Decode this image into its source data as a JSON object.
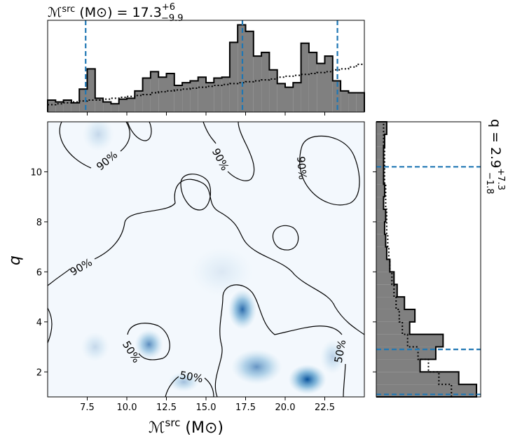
{
  "chart_data": {
    "type": "corner",
    "title": {
      "symbol": "ℳ",
      "sup": "src",
      "unit": " (M⊙) = ",
      "median": "17.3",
      "plus": "+6",
      "minus": "−9.9"
    },
    "x_label": {
      "symbol": "ℳ",
      "sup": "src",
      "unit": " (M⊙)"
    },
    "y_label": "q",
    "side_title": {
      "text": "q = 2.9",
      "plus": "+7.3",
      "minus": "−1.8"
    },
    "xlim": [
      5.0,
      25.0
    ],
    "ylim": [
      1.0,
      12.0
    ],
    "xticks": [
      7.5,
      {
        "value": 10,
        "label": "10.0"
      },
      12.5,
      {
        "value": 15,
        "label": "15.0"
      },
      17.5,
      {
        "value": 20,
        "label": "20.0"
      },
      22.5
    ],
    "yticks": [
      2,
      4,
      6,
      8,
      10
    ],
    "x_quantiles": [
      7.4,
      17.3,
      23.3
    ],
    "y_quantiles": [
      1.1,
      2.9,
      10.2
    ],
    "hist_lim": [
      0,
      100
    ],
    "x_hist": {
      "bins": [
        5.0,
        5.5,
        6.0,
        6.5,
        7.0,
        7.5,
        8.0,
        8.5,
        9.0,
        9.5,
        10.0,
        10.5,
        11.0,
        11.5,
        12.0,
        12.5,
        13.0,
        13.5,
        14.0,
        14.5,
        15.0,
        15.5,
        16.0,
        16.5,
        17.0,
        17.5,
        18.0,
        18.5,
        19.0,
        19.5,
        20.0,
        20.5,
        21.0,
        21.5,
        22.0,
        22.5,
        23.0,
        23.5,
        24.0,
        24.5,
        25.0
      ],
      "counts": [
        13,
        11,
        13,
        10,
        25,
        47,
        15,
        11,
        9,
        14,
        15,
        23,
        37,
        44,
        38,
        42,
        29,
        32,
        34,
        38,
        32,
        37,
        38,
        76,
        95,
        88,
        61,
        65,
        46,
        31,
        27,
        32,
        75,
        65,
        53,
        61,
        34,
        23,
        21,
        21
      ],
      "prior_counts": [
        8,
        9,
        10,
        11,
        12,
        13,
        13,
        14,
        15,
        16,
        17,
        18,
        19,
        21,
        22,
        23,
        24,
        25,
        26,
        27,
        28,
        29,
        30,
        31,
        32,
        33,
        34,
        35,
        36,
        38,
        39,
        40,
        41,
        42,
        43,
        44,
        46,
        47,
        49,
        52
      ]
    },
    "y_hist": {
      "bins": [
        1.0,
        1.5,
        2.0,
        2.5,
        3.0,
        3.5,
        4.0,
        4.5,
        5.0,
        5.5,
        6.0,
        6.5,
        7.0,
        7.5,
        8.0,
        8.5,
        9.0,
        9.5,
        10.0,
        10.5,
        11.0,
        11.5,
        12.0
      ],
      "counts": [
        96,
        79,
        42,
        57,
        64,
        32,
        37,
        27,
        20,
        17,
        13,
        10,
        9,
        8,
        9,
        7,
        8,
        7,
        7,
        7,
        8,
        10
      ],
      "prior_counts": [
        72,
        60,
        50,
        40,
        30,
        25,
        22,
        19,
        17,
        15,
        13,
        12,
        11,
        10,
        10,
        9,
        9,
        8,
        8,
        8,
        7,
        7
      ]
    },
    "density_peaks": [
      {
        "x": 21.4,
        "y": 1.7,
        "sx": 1.2,
        "sy": 0.6,
        "w": 1.0
      },
      {
        "x": 17.3,
        "y": 4.5,
        "sx": 0.9,
        "sy": 0.8,
        "w": 0.85
      },
      {
        "x": 18.2,
        "y": 2.2,
        "sx": 1.6,
        "sy": 0.7,
        "w": 0.6
      },
      {
        "x": 11.4,
        "y": 3.1,
        "sx": 0.9,
        "sy": 0.6,
        "w": 0.65
      },
      {
        "x": 13.6,
        "y": 1.6,
        "sx": 1.0,
        "sy": 0.4,
        "w": 0.35
      },
      {
        "x": 8.0,
        "y": 3.0,
        "sx": 0.9,
        "sy": 0.6,
        "w": 0.2
      },
      {
        "x": 8.2,
        "y": 11.5,
        "sx": 1.0,
        "sy": 0.7,
        "w": 0.2
      },
      {
        "x": 23.0,
        "y": 2.6,
        "sx": 0.8,
        "sy": 0.7,
        "w": 0.25
      },
      {
        "x": 16.0,
        "y": 6.0,
        "sx": 2.0,
        "sy": 1.0,
        "w": 0.1
      }
    ],
    "contour_labels": [
      "90%",
      "90%",
      "90%",
      "90%",
      "50%",
      "50%",
      "50%"
    ],
    "hist_color": "#808080",
    "quantile_color": "#1f77b4",
    "density_color": "#08519c"
  }
}
